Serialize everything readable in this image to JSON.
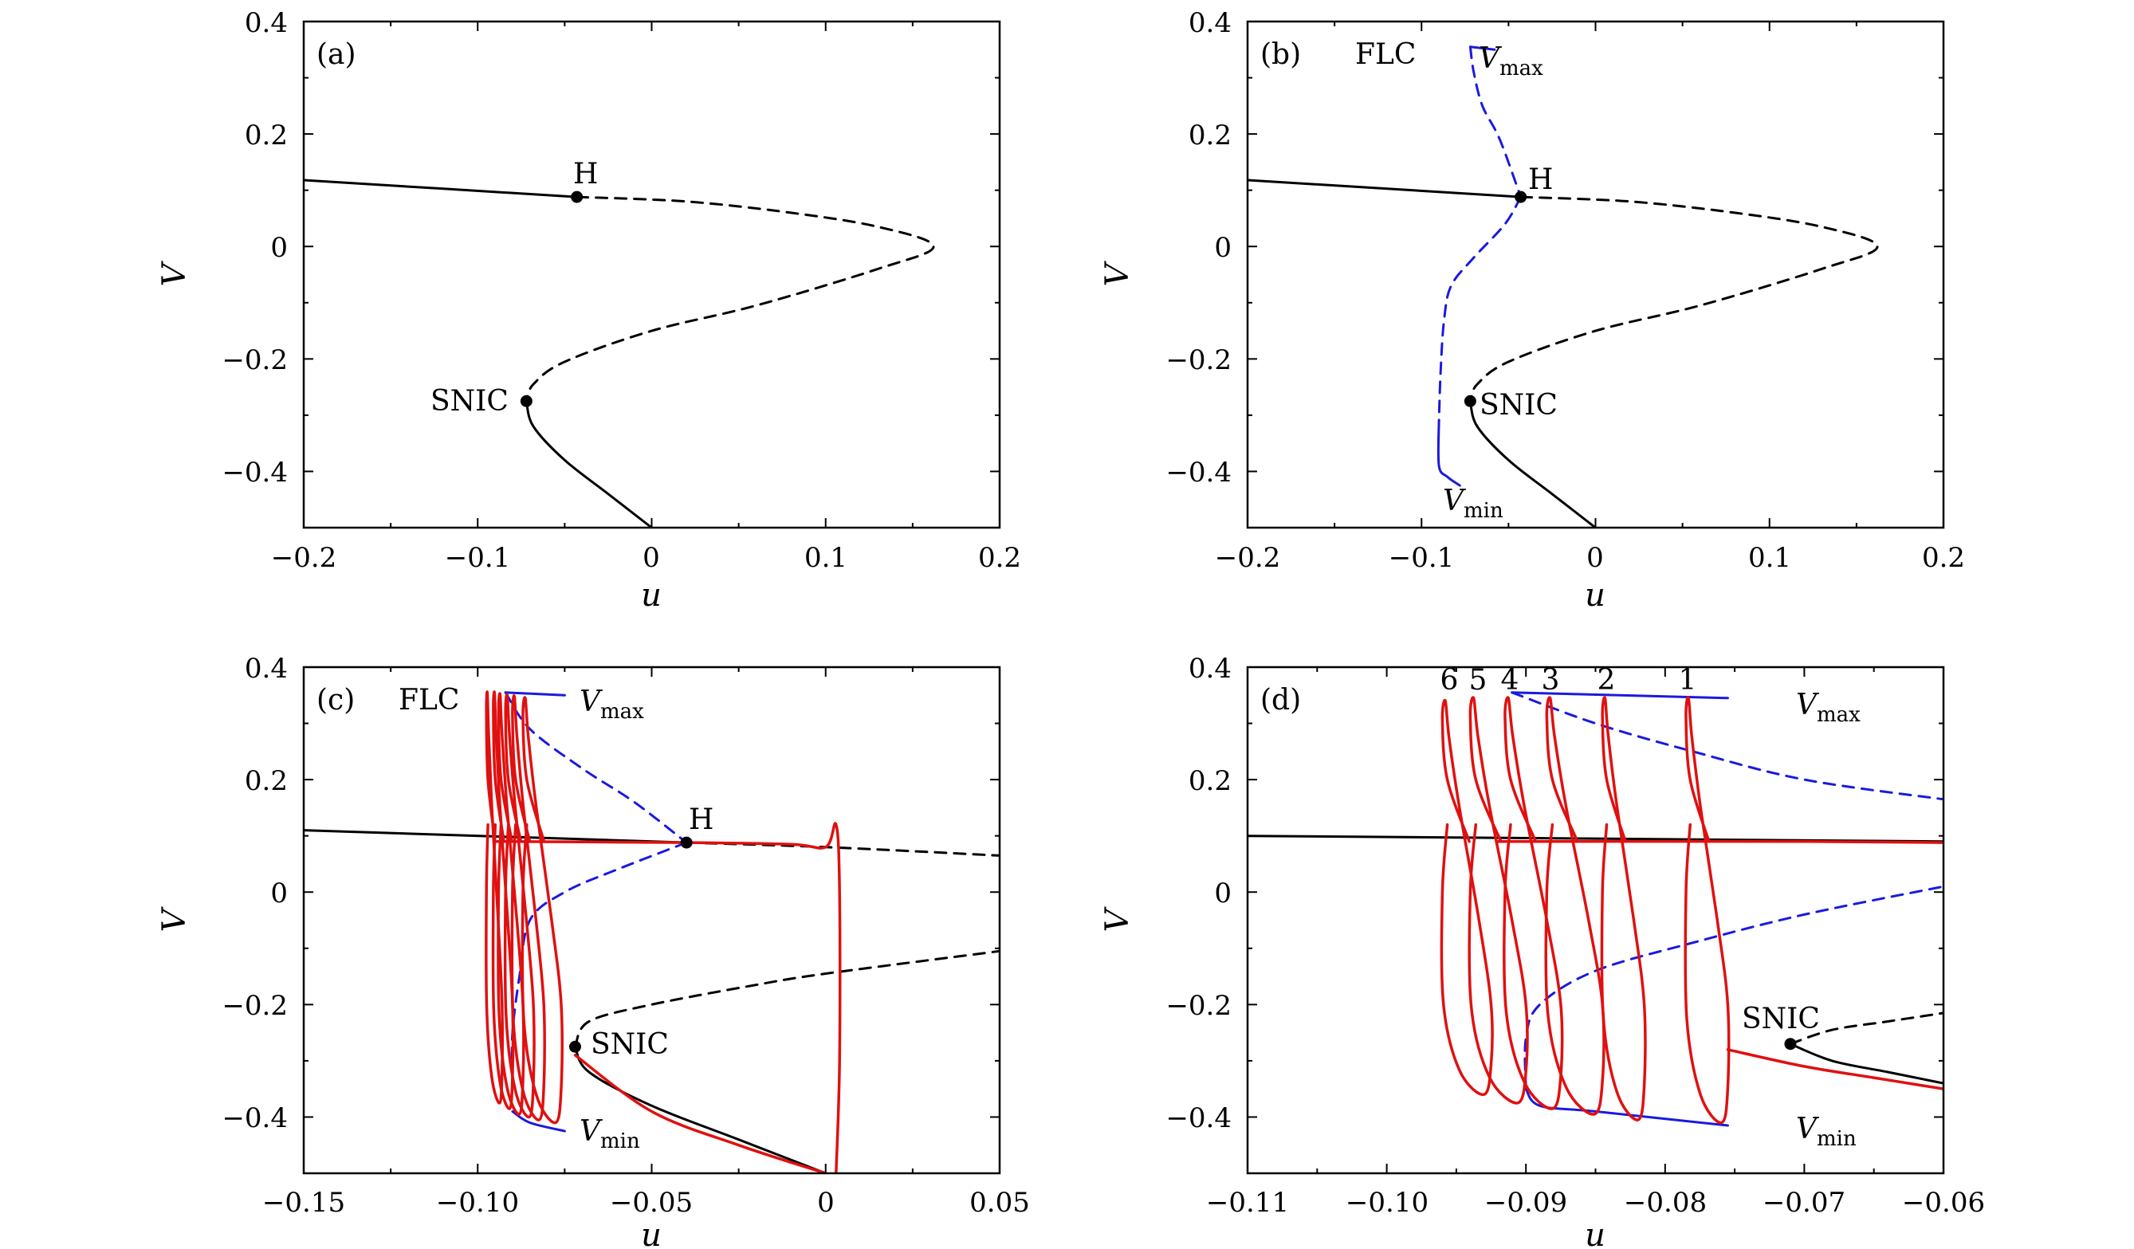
{
  "chart_data": [
    {
      "panel": "(a)",
      "type": "line",
      "xlabel": "u",
      "ylabel": "V",
      "xlim": [
        -0.2,
        0.2
      ],
      "ylim": [
        -0.5,
        0.4
      ],
      "xticks": [
        -0.2,
        -0.1,
        0,
        0.1,
        0.2
      ],
      "xticklabels": [
        "−0.2",
        "−0.1",
        "0",
        "0.1",
        "0.2"
      ],
      "yticks": [
        -0.4,
        -0.2,
        0,
        0.2,
        0.4
      ],
      "yticklabels": [
        "−0.4",
        "−0.2",
        "0",
        "0.2",
        "0.4"
      ],
      "series": [
        {
          "name": "stable equilibria (upper)",
          "style": "solid",
          "color": "#000000",
          "points": [
            [
              -0.2,
              0.118
            ],
            [
              -0.043,
              0.088
            ]
          ]
        },
        {
          "name": "unstable equilibria",
          "style": "dashed",
          "color": "#000000",
          "points": [
            [
              -0.043,
              0.088
            ],
            [
              0.02,
              0.08
            ],
            [
              0.08,
              0.06
            ],
            [
              0.13,
              0.035
            ],
            [
              0.162,
              0.0
            ],
            [
              0.13,
              -0.04
            ],
            [
              0.06,
              -0.105
            ],
            [
              0.0,
              -0.15
            ],
            [
              -0.05,
              -0.205
            ],
            [
              -0.068,
              -0.245
            ],
            [
              -0.072,
              -0.275
            ]
          ]
        },
        {
          "name": "stable equilibria (lower)",
          "style": "solid",
          "color": "#000000",
          "points": [
            [
              -0.072,
              -0.275
            ],
            [
              -0.068,
              -0.32
            ],
            [
              -0.05,
              -0.38
            ],
            [
              -0.025,
              -0.44
            ],
            [
              0.0,
              -0.5
            ]
          ]
        }
      ],
      "points": [
        {
          "label": "H",
          "x": -0.043,
          "y": 0.088
        },
        {
          "label": "SNIC",
          "x": -0.072,
          "y": -0.275
        }
      ]
    },
    {
      "panel": "(b)",
      "type": "line",
      "xlabel": "u",
      "ylabel": "V",
      "xlim": [
        -0.2,
        0.2
      ],
      "ylim": [
        -0.5,
        0.4
      ],
      "xticks": [
        -0.2,
        -0.1,
        0,
        0.1,
        0.2
      ],
      "xticklabels": [
        "−0.2",
        "−0.1",
        "0",
        "0.1",
        "0.2"
      ],
      "yticks": [
        -0.4,
        -0.2,
        0,
        0.2,
        0.4
      ],
      "yticklabels": [
        "−0.4",
        "−0.2",
        "0",
        "0.2",
        "0.4"
      ],
      "series": [
        {
          "name": "stable equilibria (upper)",
          "style": "solid",
          "color": "#000000",
          "points": [
            [
              -0.2,
              0.118
            ],
            [
              -0.043,
              0.088
            ]
          ]
        },
        {
          "name": "unstable equilibria",
          "style": "dashed",
          "color": "#000000",
          "points": [
            [
              -0.043,
              0.088
            ],
            [
              0.02,
              0.08
            ],
            [
              0.08,
              0.06
            ],
            [
              0.13,
              0.035
            ],
            [
              0.162,
              0.0
            ],
            [
              0.13,
              -0.04
            ],
            [
              0.06,
              -0.105
            ],
            [
              0.0,
              -0.15
            ],
            [
              -0.05,
              -0.205
            ],
            [
              -0.068,
              -0.245
            ],
            [
              -0.072,
              -0.275
            ]
          ]
        },
        {
          "name": "stable equilibria (lower)",
          "style": "solid",
          "color": "#000000",
          "points": [
            [
              -0.072,
              -0.275
            ],
            [
              -0.068,
              -0.32
            ],
            [
              -0.05,
              -0.38
            ],
            [
              -0.025,
              -0.44
            ],
            [
              0.0,
              -0.5
            ]
          ]
        },
        {
          "name": "FLC Vmax (stable)",
          "style": "solid",
          "color": "#1a1adf",
          "points": [
            [
              -0.072,
              0.355
            ],
            [
              -0.058,
              0.35
            ]
          ]
        },
        {
          "name": "FLC Vmax (unstable)",
          "style": "dashed",
          "color": "#1a1adf",
          "points": [
            [
              -0.072,
              0.355
            ],
            [
              -0.07,
              0.31
            ],
            [
              -0.065,
              0.25
            ],
            [
              -0.055,
              0.19
            ],
            [
              -0.043,
              0.088
            ]
          ]
        },
        {
          "name": "FLC Vmin (unstable)",
          "style": "dashed",
          "color": "#1a1adf",
          "points": [
            [
              -0.043,
              0.088
            ],
            [
              -0.052,
              0.04
            ],
            [
              -0.07,
              -0.02
            ],
            [
              -0.083,
              -0.07
            ],
            [
              -0.087,
              -0.13
            ],
            [
              -0.089,
              -0.22
            ],
            [
              -0.09,
              -0.31
            ]
          ]
        },
        {
          "name": "FLC Vmin (stable)",
          "style": "solid",
          "color": "#1a1adf",
          "points": [
            [
              -0.09,
              -0.31
            ],
            [
              -0.09,
              -0.39
            ],
            [
              -0.085,
              -0.41
            ],
            [
              -0.078,
              -0.425
            ]
          ]
        }
      ],
      "points": [
        {
          "label": "H",
          "x": -0.043,
          "y": 0.088
        },
        {
          "label": "SNIC",
          "x": -0.072,
          "y": -0.275
        }
      ],
      "annotations": [
        {
          "text": "FLC"
        },
        {
          "text": "V",
          "sub": "max"
        },
        {
          "text": "V",
          "sub": "min"
        }
      ]
    },
    {
      "panel": "(c)",
      "type": "line",
      "xlabel": "u",
      "ylabel": "V",
      "xlim": [
        -0.15,
        0.05
      ],
      "ylim": [
        -0.5,
        0.4
      ],
      "xticks": [
        -0.15,
        -0.1,
        -0.05,
        0,
        0.05
      ],
      "xticklabels": [
        "−0.15",
        "−0.10",
        "−0.05",
        "0",
        "0.05"
      ],
      "yticks": [
        -0.4,
        -0.2,
        0,
        0.2,
        0.4
      ],
      "yticklabels": [
        "−0.4",
        "−0.2",
        "0",
        "0.2",
        "0.4"
      ],
      "series": [
        {
          "name": "stable equilibria (upper)",
          "style": "solid",
          "color": "#000000",
          "points": [
            [
              -0.15,
              0.11
            ],
            [
              -0.04,
              0.088
            ]
          ]
        },
        {
          "name": "unstable equilibria (upper)",
          "style": "dashed",
          "color": "#000000",
          "points": [
            [
              -0.04,
              0.088
            ],
            [
              0.0,
              0.08
            ],
            [
              0.05,
              0.065
            ]
          ]
        },
        {
          "name": "unstable equilibria (lower)",
          "style": "dashed",
          "color": "#000000",
          "points": [
            [
              -0.072,
              -0.275
            ],
            [
              -0.068,
              -0.23
            ],
            [
              -0.05,
              -0.2
            ],
            [
              -0.02,
              -0.165
            ],
            [
              0.0,
              -0.145
            ],
            [
              0.05,
              -0.105
            ]
          ]
        },
        {
          "name": "stable equilibria (lower)",
          "style": "solid",
          "color": "#000000",
          "points": [
            [
              -0.072,
              -0.275
            ],
            [
              -0.068,
              -0.32
            ],
            [
              -0.05,
              -0.38
            ],
            [
              -0.025,
              -0.44
            ],
            [
              0.0,
              -0.5
            ]
          ]
        },
        {
          "name": "FLC Vmax",
          "style": "dashed",
          "color": "#1a1adf",
          "points": [
            [
              -0.092,
              0.355
            ],
            [
              -0.085,
              0.29
            ],
            [
              -0.07,
              0.22
            ],
            [
              -0.055,
              0.16
            ],
            [
              -0.04,
              0.088
            ]
          ]
        },
        {
          "name": "FLC Vmax (stable)",
          "style": "solid",
          "color": "#1a1adf",
          "points": [
            [
              -0.092,
              0.355
            ],
            [
              -0.075,
              0.35
            ]
          ]
        },
        {
          "name": "FLC Vmin",
          "style": "dashed",
          "color": "#1a1adf",
          "points": [
            [
              -0.04,
              0.088
            ],
            [
              -0.06,
              0.04
            ],
            [
              -0.075,
              0.0
            ],
            [
              -0.085,
              -0.05
            ],
            [
              -0.088,
              -0.15
            ],
            [
              -0.09,
              -0.25
            ],
            [
              -0.09,
              -0.33
            ]
          ]
        },
        {
          "name": "FLC Vmin (stable)",
          "style": "solid",
          "color": "#1a1adf",
          "points": [
            [
              -0.09,
              -0.39
            ],
            [
              -0.085,
              -0.41
            ],
            [
              -0.075,
              -0.425
            ]
          ]
        },
        {
          "name": "trajectory",
          "style": "solid",
          "color": "#e01010",
          "loops": [
            {
              "xl": -0.0975,
              "xr": -0.093,
              "ymax": 0.355,
              "ymin": -0.375
            },
            {
              "xl": -0.0955,
              "xr": -0.09,
              "ymax": 0.355,
              "ymin": -0.385
            },
            {
              "xl": -0.094,
              "xr": -0.087,
              "ymax": 0.352,
              "ymin": -0.395
            },
            {
              "xl": -0.092,
              "xr": -0.084,
              "ymax": 0.35,
              "ymin": -0.4
            },
            {
              "xl": -0.09,
              "xr": -0.081,
              "ymax": 0.348,
              "ymin": -0.405
            },
            {
              "xl": -0.087,
              "xr": -0.076,
              "ymax": 0.345,
              "ymin": -0.41
            }
          ],
          "branch": [
            [
              -0.095,
              0.09
            ],
            [
              -0.04,
              0.088
            ],
            [
              -0.01,
              0.085
            ],
            [
              0.0,
              0.08
            ],
            [
              0.003,
              0.12
            ],
            [
              0.004,
              0.0
            ],
            [
              0.004,
              -0.3
            ],
            [
              0.003,
              -0.5
            ]
          ]
        },
        {
          "name": "trajectory (lower)",
          "style": "solid",
          "color": "#e01010",
          "points": [
            [
              -0.072,
              -0.29
            ],
            [
              -0.05,
              -0.39
            ],
            [
              -0.025,
              -0.45
            ],
            [
              0.0,
              -0.5
            ]
          ]
        }
      ],
      "points": [
        {
          "label": "H",
          "x": -0.04,
          "y": 0.088
        },
        {
          "label": "SNIC",
          "x": -0.072,
          "y": -0.275
        }
      ],
      "annotations": [
        {
          "text": "FLC"
        },
        {
          "text": "V",
          "sub": "max"
        },
        {
          "text": "V",
          "sub": "min"
        }
      ]
    },
    {
      "panel": "(d)",
      "type": "line",
      "xlabel": "u",
      "ylabel": "V",
      "xlim": [
        -0.11,
        -0.06
      ],
      "ylim": [
        -0.5,
        0.4
      ],
      "xticks": [
        -0.11,
        -0.1,
        -0.09,
        -0.08,
        -0.07,
        -0.06
      ],
      "xticklabels": [
        "−0.11",
        "−0.10",
        "−0.09",
        "−0.08",
        "−0.07",
        "−0.06"
      ],
      "yticks": [
        -0.4,
        -0.2,
        0,
        0.2,
        0.4
      ],
      "yticklabels": [
        "−0.4",
        "−0.2",
        "0",
        "0.2",
        "0.4"
      ],
      "series": [
        {
          "name": "stable equilibria (upper)",
          "style": "solid",
          "color": "#000000",
          "points": [
            [
              -0.11,
              0.1
            ],
            [
              -0.06,
              0.09
            ]
          ]
        },
        {
          "name": "unstable equilibria (lower)",
          "style": "dashed",
          "color": "#000000",
          "points": [
            [
              -0.071,
              -0.27
            ],
            [
              -0.068,
              -0.245
            ],
            [
              -0.064,
              -0.23
            ],
            [
              -0.06,
              -0.215
            ]
          ]
        },
        {
          "name": "stable equilibria (lower)",
          "style": "solid",
          "color": "#000000",
          "points": [
            [
              -0.071,
              -0.27
            ],
            [
              -0.068,
              -0.3
            ],
            [
              -0.064,
              -0.32
            ],
            [
              -0.06,
              -0.34
            ]
          ]
        },
        {
          "name": "FLC Vmax",
          "style": "dashed",
          "color": "#1a1adf",
          "points": [
            [
              -0.091,
              0.355
            ],
            [
              -0.085,
              0.3
            ],
            [
              -0.078,
              0.25
            ],
            [
              -0.07,
              0.2
            ],
            [
              -0.06,
              0.165
            ]
          ]
        },
        {
          "name": "FLC Vmax (stable)",
          "style": "solid",
          "color": "#1a1adf",
          "points": [
            [
              -0.091,
              0.355
            ],
            [
              -0.0755,
              0.345
            ]
          ]
        },
        {
          "name": "FLC Vmin",
          "style": "dashed",
          "color": "#1a1adf",
          "points": [
            [
              -0.09,
              -0.35
            ],
            [
              -0.09,
              -0.26
            ],
            [
              -0.089,
              -0.2
            ],
            [
              -0.085,
              -0.14
            ],
            [
              -0.078,
              -0.09
            ],
            [
              -0.07,
              -0.04
            ],
            [
              -0.06,
              0.01
            ]
          ]
        },
        {
          "name": "FLC Vmin (stable)",
          "style": "solid",
          "color": "#1a1adf",
          "points": [
            [
              -0.09,
              -0.35
            ],
            [
              -0.089,
              -0.38
            ],
            [
              -0.085,
              -0.39
            ],
            [
              -0.0755,
              -0.415
            ]
          ]
        },
        {
          "name": "trajectory",
          "style": "solid",
          "color": "#e01010",
          "loops": [
            {
              "xl": -0.0785,
              "xr": -0.0755,
              "ymax": 0.345,
              "ymin": -0.41
            },
            {
              "xl": -0.0845,
              "xr": -0.0815,
              "ymax": 0.345,
              "ymin": -0.405
            },
            {
              "xl": -0.0885,
              "xr": -0.0845,
              "ymax": 0.345,
              "ymin": -0.395
            },
            {
              "xl": -0.0915,
              "xr": -0.0875,
              "ymax": 0.345,
              "ymin": -0.385
            },
            {
              "xl": -0.094,
              "xr": -0.09,
              "ymax": 0.345,
              "ymin": -0.375
            },
            {
              "xl": -0.096,
              "xr": -0.0925,
              "ymax": 0.34,
              "ymin": -0.36
            }
          ],
          "branch": [
            [
              -0.092,
              0.09
            ],
            [
              -0.07,
              0.09
            ],
            [
              -0.06,
              0.088
            ]
          ]
        },
        {
          "name": "trajectory (lower)",
          "style": "solid",
          "color": "#e01010",
          "points": [
            [
              -0.0755,
              -0.28
            ],
            [
              -0.07,
              -0.31
            ],
            [
              -0.065,
              -0.33
            ],
            [
              -0.06,
              -0.35
            ]
          ]
        }
      ],
      "points": [
        {
          "label": "SNIC",
          "x": -0.071,
          "y": -0.27
        }
      ],
      "annotations": [
        {
          "text": "V",
          "sub": "max"
        },
        {
          "text": "V",
          "sub": "min"
        },
        {
          "text": "1"
        },
        {
          "text": "2"
        },
        {
          "text": "3"
        },
        {
          "text": "4"
        },
        {
          "text": "5"
        },
        {
          "text": "6"
        }
      ]
    }
  ]
}
